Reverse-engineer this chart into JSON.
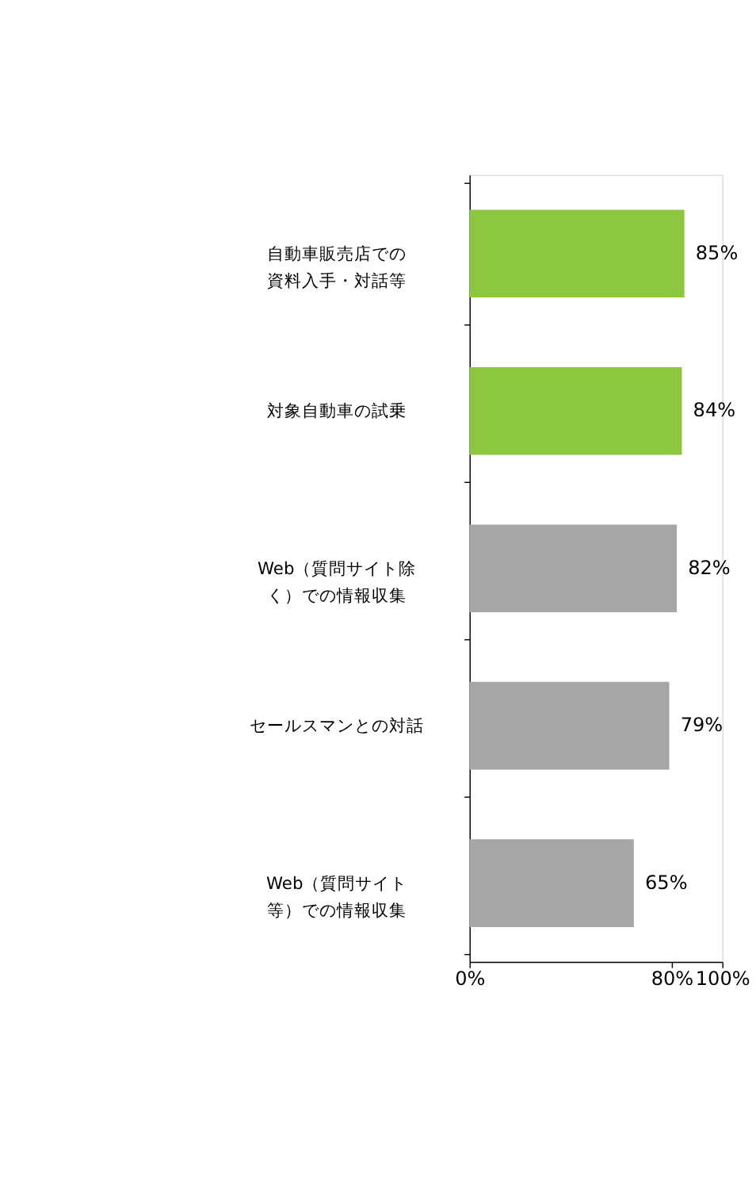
{
  "chart_data": {
    "type": "bar",
    "orientation": "horizontal",
    "categories": [
      "自動車販売店での資料入手・対話等",
      "対象自動車の試乗",
      "Web（質問サイト除く）での情報収集",
      "セールスマンとの対話",
      "Web（質問サイト等）での情報収集"
    ],
    "values": [
      85,
      84,
      82,
      79,
      65
    ],
    "colors": [
      "#8dc63f",
      "#8dc63f",
      "#a6a6a6",
      "#a6a6a6",
      "#a6a6a6"
    ],
    "value_labels": [
      "85%",
      "84%",
      "82%",
      "79%",
      "65%"
    ],
    "xlim": [
      0,
      100
    ],
    "xticks": [
      {
        "value": 0,
        "label": "0%"
      },
      {
        "value": 80,
        "label": "80%"
      },
      {
        "value": 100,
        "label": "100%"
      }
    ],
    "grid": false
  }
}
